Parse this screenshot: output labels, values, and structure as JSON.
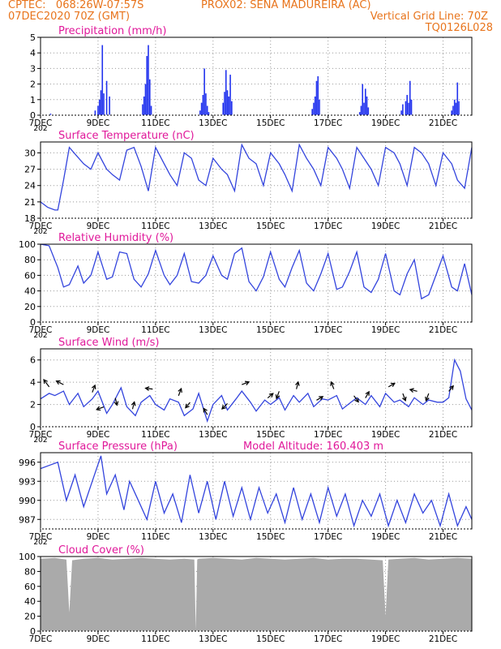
{
  "header": {
    "line1_left": "CPTEC:   068:26W-07:57S",
    "line1_mid": "PROX02: SENA MADUREIRA (AC)",
    "line2_left": "07DEC2020 70Z (GMT)",
    "line2_right": "Vertical Grid Line: 70Z",
    "line3_right": "TQ0126L028"
  },
  "x_ticks": [
    "7DEC",
    "9DEC",
    "11DEC",
    "13DEC",
    "15DEC",
    "17DEC",
    "19DEC",
    "21DEC"
  ],
  "x_year_fragment": "202",
  "colors": {
    "header": "#e8741c",
    "title": "#e0189a",
    "line": "#3344dd",
    "bar": "#2233ee",
    "cloud": "#aaaaaa",
    "grid": "#999999"
  },
  "chart_data": [
    {
      "type": "bar",
      "title": "Precipitation (mm/h)",
      "ylim": [
        0,
        5
      ],
      "yticks": [
        "0",
        "1",
        "2",
        "3",
        "4",
        "5"
      ],
      "x_unit": "days since 7DEC2020 00Z",
      "x": [
        0.35,
        1.9,
        2.0,
        2.05,
        2.1,
        2.15,
        2.2,
        2.3,
        2.4,
        3.55,
        3.6,
        3.65,
        3.7,
        3.75,
        3.8,
        3.85,
        5.55,
        5.6,
        5.65,
        5.7,
        5.75,
        5.8,
        5.85,
        6.35,
        6.4,
        6.45,
        6.5,
        6.55,
        6.6,
        6.65,
        9.45,
        9.5,
        9.55,
        9.6,
        9.65,
        9.7,
        11.1,
        11.15,
        11.2,
        11.25,
        11.3,
        11.35,
        11.4,
        12.55,
        12.6,
        12.7,
        12.75,
        12.8,
        12.85,
        12.9,
        14.3,
        14.35,
        14.4,
        14.45,
        14.5,
        14.55
      ],
      "values": [
        0.1,
        0.3,
        0.6,
        1.0,
        1.6,
        4.5,
        1.4,
        2.2,
        1.2,
        0.7,
        1.2,
        2.0,
        3.8,
        4.5,
        2.3,
        0.6,
        0.3,
        0.8,
        1.3,
        3.0,
        1.4,
        0.6,
        0.2,
        0.8,
        1.5,
        2.9,
        1.6,
        1.2,
        2.6,
        0.9,
        0.4,
        0.8,
        1.2,
        2.2,
        2.5,
        1.0,
        0.2,
        0.6,
        2.0,
        0.8,
        1.7,
        1.2,
        0.5,
        0.3,
        0.7,
        0.9,
        1.3,
        0.8,
        2.2,
        1.0,
        0.3,
        0.6,
        1.0,
        0.8,
        2.1,
        0.9
      ]
    },
    {
      "type": "line",
      "title": "Surface Temperature (nC)",
      "ylim": [
        18,
        32
      ],
      "yticks": [
        "18",
        "21",
        "24",
        "27",
        "30"
      ],
      "x": [
        0,
        0.25,
        0.5,
        0.6,
        0.8,
        1.0,
        1.25,
        1.5,
        1.75,
        2.0,
        2.3,
        2.5,
        2.75,
        3.0,
        3.25,
        3.5,
        3.75,
        4.0,
        4.3,
        4.5,
        4.75,
        5.0,
        5.25,
        5.5,
        5.75,
        6.0,
        6.3,
        6.5,
        6.75,
        7.0,
        7.25,
        7.5,
        7.75,
        8.0,
        8.3,
        8.5,
        8.75,
        9.0,
        9.25,
        9.5,
        9.75,
        10.0,
        10.3,
        10.5,
        10.75,
        11.0,
        11.25,
        11.5,
        11.75,
        12.0,
        12.3,
        12.5,
        12.75,
        13.0,
        13.25,
        13.5,
        13.75,
        14.0,
        14.3,
        14.5,
        14.75,
        15.0
      ],
      "values": [
        21,
        20,
        19.5,
        19.5,
        25,
        31,
        29.5,
        28,
        27,
        30,
        27,
        26,
        25,
        30.5,
        31,
        27.5,
        23,
        31,
        28,
        26,
        24,
        30,
        29,
        25,
        24,
        29,
        27,
        26,
        23,
        31.5,
        29,
        28,
        24,
        30,
        28,
        26,
        23,
        31.5,
        29,
        27,
        24,
        31,
        29,
        27,
        23.5,
        31,
        29,
        27,
        24,
        31,
        30,
        28,
        24,
        31,
        30,
        28,
        24,
        30,
        28,
        25,
        23.5,
        31
      ]
    },
    {
      "type": "line",
      "title": "Relative Humidity (%)",
      "ylim": [
        0,
        100
      ],
      "yticks": [
        "0",
        "20",
        "40",
        "60",
        "80",
        "100"
      ],
      "x": [
        0,
        0.3,
        0.6,
        0.8,
        1.0,
        1.3,
        1.5,
        1.75,
        2.0,
        2.3,
        2.5,
        2.75,
        3.0,
        3.25,
        3.5,
        3.75,
        4.0,
        4.3,
        4.5,
        4.75,
        5.0,
        5.25,
        5.5,
        5.75,
        6.0,
        6.3,
        6.5,
        6.75,
        7.0,
        7.25,
        7.5,
        7.75,
        8.0,
        8.3,
        8.5,
        8.75,
        9.0,
        9.25,
        9.5,
        9.75,
        10.0,
        10.3,
        10.5,
        10.75,
        11.0,
        11.25,
        11.5,
        11.75,
        12.0,
        12.3,
        12.5,
        12.75,
        13.0,
        13.25,
        13.5,
        13.75,
        14.0,
        14.3,
        14.5,
        14.75,
        15.0
      ],
      "values": [
        100,
        98,
        70,
        45,
        48,
        72,
        50,
        60,
        90,
        55,
        58,
        90,
        88,
        55,
        45,
        62,
        92,
        60,
        48,
        60,
        88,
        52,
        50,
        60,
        85,
        60,
        55,
        88,
        95,
        52,
        40,
        58,
        90,
        55,
        45,
        70,
        92,
        50,
        40,
        62,
        88,
        42,
        45,
        65,
        90,
        45,
        38,
        55,
        88,
        40,
        35,
        62,
        80,
        30,
        35,
        60,
        85,
        45,
        40,
        75,
        35
      ]
    },
    {
      "type": "line",
      "title": "Surface Wind (m/s)",
      "ylim": [
        0,
        7
      ],
      "yticks": [
        "0",
        "2",
        "4",
        "6"
      ],
      "x": [
        0,
        0.3,
        0.5,
        0.8,
        1.0,
        1.3,
        1.5,
        1.8,
        2.0,
        2.3,
        2.5,
        2.8,
        3.0,
        3.3,
        3.5,
        3.8,
        4.0,
        4.3,
        4.5,
        4.8,
        5.0,
        5.3,
        5.5,
        5.8,
        6.0,
        6.3,
        6.5,
        6.8,
        7.0,
        7.3,
        7.5,
        7.8,
        8.0,
        8.3,
        8.5,
        8.8,
        9.0,
        9.3,
        9.5,
        9.8,
        10.0,
        10.3,
        10.5,
        10.8,
        11.0,
        11.3,
        11.5,
        11.8,
        12.0,
        12.3,
        12.5,
        12.8,
        13.0,
        13.3,
        13.5,
        13.8,
        14.0,
        14.2,
        14.4,
        14.6,
        14.8,
        15.0
      ],
      "values": [
        2.5,
        3.0,
        2.8,
        3.2,
        2.0,
        3.0,
        1.8,
        2.5,
        3.2,
        1.2,
        2.0,
        3.5,
        1.8,
        1.0,
        2.2,
        2.8,
        2.0,
        1.5,
        2.5,
        2.2,
        1.0,
        1.6,
        3.0,
        0.5,
        2.0,
        2.8,
        1.5,
        2.5,
        3.2,
        2.2,
        1.4,
        2.4,
        2.0,
        2.6,
        1.5,
        2.8,
        2.2,
        3.0,
        1.8,
        2.5,
        2.4,
        2.8,
        1.6,
        2.2,
        2.6,
        2.0,
        2.8,
        1.8,
        3.0,
        2.2,
        2.4,
        1.8,
        2.6,
        2.0,
        2.4,
        2.2,
        2.2,
        2.6,
        6.0,
        5.0,
        2.5,
        1.5
      ],
      "arrows": [
        {
          "x": 0.3,
          "dx": -0.6,
          "dy": 0.8
        },
        {
          "x": 0.8,
          "dx": -0.8,
          "dy": 0.4
        },
        {
          "x": 1.8,
          "dx": 0.3,
          "dy": 0.8
        },
        {
          "x": 2.2,
          "dx": -0.8,
          "dy": -0.3
        },
        {
          "x": 2.6,
          "dx": 0.2,
          "dy": -0.8
        },
        {
          "x": 3.2,
          "dx": 0.2,
          "dy": 0.8
        },
        {
          "x": 3.9,
          "dx": -0.8,
          "dy": 0.1
        },
        {
          "x": 4.8,
          "dx": 0.3,
          "dy": 0.8
        },
        {
          "x": 5.2,
          "dx": -0.5,
          "dy": -0.6
        },
        {
          "x": 5.8,
          "dx": -0.4,
          "dy": 0.7
        },
        {
          "x": 6.5,
          "dx": -0.6,
          "dy": -0.6
        },
        {
          "x": 7.0,
          "dx": 0.8,
          "dy": 0.3
        },
        {
          "x": 7.9,
          "dx": 0.6,
          "dy": 0.5
        },
        {
          "x": 8.3,
          "dx": -0.3,
          "dy": -0.8
        },
        {
          "x": 8.9,
          "dx": 0.2,
          "dy": 0.8
        },
        {
          "x": 9.6,
          "dx": 0.7,
          "dy": 0.4
        },
        {
          "x": 10.2,
          "dx": -0.3,
          "dy": 0.8
        },
        {
          "x": 10.9,
          "dx": 0.5,
          "dy": -0.7
        },
        {
          "x": 11.3,
          "dx": 0.4,
          "dy": 0.7
        },
        {
          "x": 12.1,
          "dx": 0.7,
          "dy": 0.4
        },
        {
          "x": 12.6,
          "dx": 0.3,
          "dy": -0.8
        },
        {
          "x": 13.1,
          "dx": -0.8,
          "dy": 0.2
        },
        {
          "x": 13.5,
          "dx": -0.3,
          "dy": -0.8
        },
        {
          "x": 14.2,
          "dx": 0.5,
          "dy": 0.6
        }
      ]
    },
    {
      "type": "line",
      "title": "Surface Pressure (hPa)",
      "subtitle": "Model Altitude: 160.403 m",
      "ylim": [
        985.5,
        997.5
      ],
      "yticks": [
        "987",
        "990",
        "993",
        "996"
      ],
      "x": [
        0,
        0.3,
        0.6,
        0.9,
        1.2,
        1.5,
        1.8,
        2.1,
        2.3,
        2.6,
        2.9,
        3.1,
        3.4,
        3.7,
        4.0,
        4.3,
        4.6,
        4.9,
        5.2,
        5.5,
        5.8,
        6.1,
        6.4,
        6.7,
        7.0,
        7.3,
        7.6,
        7.9,
        8.2,
        8.5,
        8.8,
        9.1,
        9.4,
        9.7,
        10.0,
        10.3,
        10.6,
        10.9,
        11.2,
        11.5,
        11.8,
        12.1,
        12.4,
        12.7,
        13.0,
        13.3,
        13.6,
        13.9,
        14.2,
        14.5,
        14.8,
        15.0
      ],
      "values": [
        995,
        995.5,
        996,
        990,
        994,
        989,
        993,
        997,
        991,
        994,
        988.5,
        993,
        990,
        987,
        993,
        988,
        991,
        986.5,
        994,
        988,
        993,
        987,
        993,
        987.5,
        992,
        987,
        992,
        988,
        991,
        986.5,
        992,
        987,
        991,
        986.5,
        992,
        987.5,
        991,
        986,
        990,
        987.5,
        991,
        986,
        990,
        986.5,
        991,
        988,
        990,
        986,
        991,
        986,
        989,
        987
      ]
    },
    {
      "type": "area",
      "title": "Cloud Cover (%)",
      "ylim": [
        0,
        100
      ],
      "yticks": [
        "0",
        "20",
        "40",
        "60",
        "80",
        "100"
      ],
      "x": [
        0,
        0.5,
        0.9,
        1.0,
        1.1,
        1.5,
        2.0,
        2.5,
        3.0,
        3.5,
        4.0,
        4.5,
        5.0,
        5.35,
        5.4,
        5.45,
        5.5,
        6.0,
        6.5,
        7.0,
        7.5,
        8.0,
        8.5,
        9.0,
        9.5,
        10.0,
        10.5,
        11.0,
        11.5,
        11.9,
        12.0,
        12.1,
        12.5,
        13.0,
        13.5,
        14.0,
        14.5,
        15.0
      ],
      "values": [
        97,
        98,
        96,
        25,
        95,
        97,
        98,
        96,
        97,
        98,
        97,
        96,
        97,
        96,
        2,
        96,
        97,
        98,
        97,
        96,
        98,
        97,
        96,
        97,
        98,
        96,
        97,
        97,
        96,
        95,
        20,
        96,
        97,
        98,
        96,
        97,
        98,
        97
      ]
    }
  ]
}
